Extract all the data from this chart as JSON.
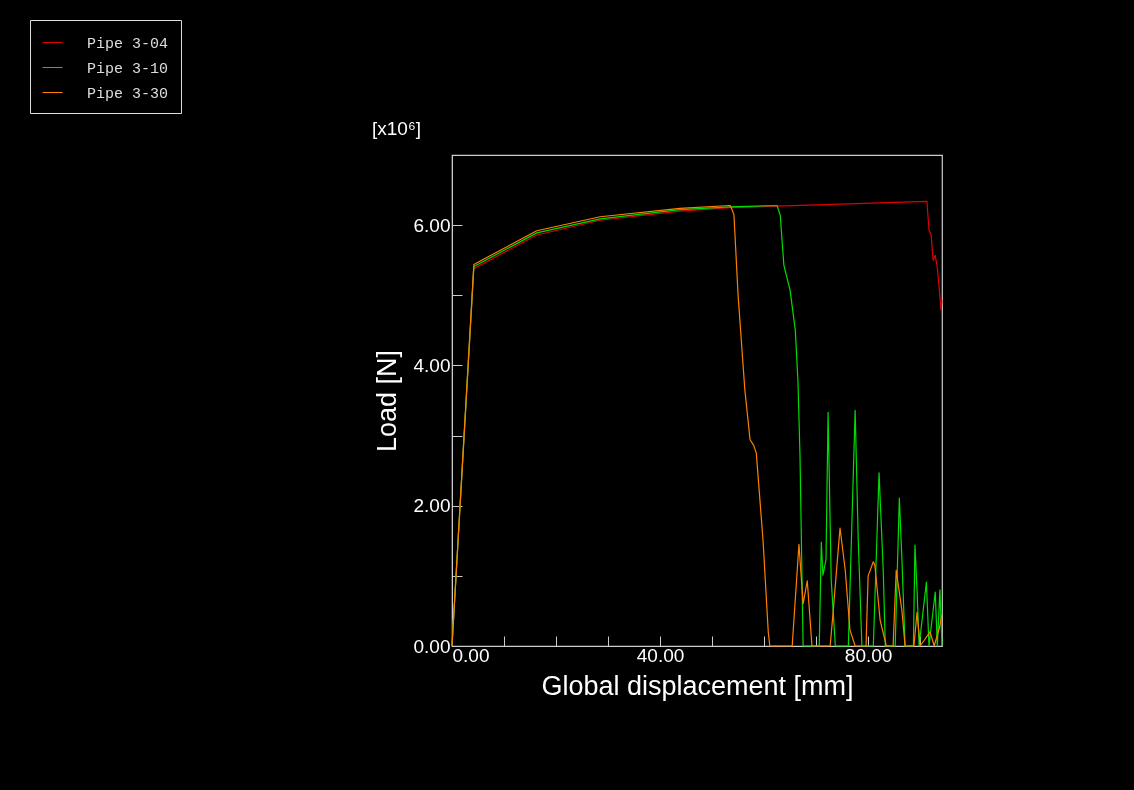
{
  "chart_data": {
    "type": "line",
    "xlabel": "Global displacement [mm]",
    "ylabel": "Load [N]",
    "annotations": [
      "[x10⁶]"
    ],
    "xlim": [
      0,
      94.2
    ],
    "ylim": [
      0,
      7
    ],
    "xticks": [
      {
        "value": 0,
        "label": "0.00"
      },
      {
        "value": 10,
        "label": null
      },
      {
        "value": 20,
        "label": null
      },
      {
        "value": 30,
        "label": null
      },
      {
        "value": 40,
        "label": "40.00"
      },
      {
        "value": 50,
        "label": null
      },
      {
        "value": 60,
        "label": null
      },
      {
        "value": 70,
        "label": null
      },
      {
        "value": 80,
        "label": "80.00"
      },
      {
        "value": 90,
        "label": null
      }
    ],
    "yticks": [
      {
        "value": 0,
        "label": "0.00"
      },
      {
        "value": 1,
        "label": null
      },
      {
        "value": 2,
        "label": "2.00"
      },
      {
        "value": 3,
        "label": null
      },
      {
        "value": 4,
        "label": "4.00"
      },
      {
        "value": 5,
        "label": null
      },
      {
        "value": 6,
        "label": "6.00"
      },
      {
        "value": 7,
        "label": null
      }
    ],
    "grid": false,
    "legend": "top left",
    "line_style": "solid",
    "marker": "none",
    "series": [
      {
        "name": "Pipe 3-04",
        "color": "#e00000",
        "x": [
          0,
          4.2,
          16.3,
          28.5,
          43.8,
          53.5,
          62.5,
          91.3,
          91.7,
          92.1,
          92.5,
          92.9,
          93.3,
          93.7,
          94.0,
          94.2
        ],
        "values": [
          0,
          5.38,
          5.86,
          6.07,
          6.2,
          6.25,
          6.27,
          6.34,
          5.93,
          5.86,
          5.5,
          5.57,
          5.39,
          5.07,
          4.79,
          4.93
        ]
      },
      {
        "name": "Pipe 3-10",
        "color": "#00dd00",
        "x": [
          0,
          4.2,
          16.3,
          28.5,
          43.8,
          53.5,
          62.5,
          63.1,
          63.8,
          65.0,
          66.0,
          66.5,
          66.9,
          67.5,
          70.6,
          71.0,
          71.3,
          71.9,
          72.3,
          72.9,
          73.7,
          76.2,
          77.5,
          78.1,
          78.8,
          81.0,
          82.1,
          82.9,
          83.3,
          85.2,
          86.0,
          86.5,
          87.1,
          88.7,
          89.0,
          89.4,
          89.8,
          91.2,
          91.7,
          92.9,
          93.3,
          93.8,
          94.2
        ],
        "values": [
          0,
          5.41,
          5.89,
          6.09,
          6.22,
          6.26,
          6.28,
          6.14,
          5.43,
          5.07,
          4.5,
          3.79,
          2.72,
          0,
          0,
          1.48,
          1.01,
          1.23,
          3.33,
          0.94,
          0,
          0,
          3.36,
          1.51,
          0,
          0,
          2.47,
          1.08,
          0,
          0,
          2.11,
          1.23,
          0,
          0,
          1.44,
          0.8,
          0,
          0.91,
          0,
          0.77,
          0,
          0.8,
          0
        ]
      },
      {
        "name": "Pipe 3-30",
        "color": "#ff8000",
        "x": [
          0,
          4.2,
          16.3,
          28.5,
          43.8,
          53.5,
          54.2,
          55.0,
          56.3,
          57.3,
          58.0,
          58.5,
          59.8,
          60.8,
          61.1,
          65.4,
          66.7,
          67.5,
          68.3,
          69.2,
          72.7,
          73.3,
          74.4,
          74.6,
          75.6,
          76.5,
          77.5,
          79.6,
          80.0,
          81.0,
          81.3,
          82.3,
          83.5,
          84.8,
          85.4,
          86.5,
          87.1,
          88.8,
          89.4,
          90.0,
          91.9,
          92.7,
          93.7,
          94.2
        ],
        "values": [
          0,
          5.44,
          5.92,
          6.12,
          6.24,
          6.28,
          6.15,
          5.0,
          3.65,
          2.94,
          2.86,
          2.75,
          1.5,
          0.2,
          0,
          0,
          1.45,
          0.6,
          0.93,
          0,
          0,
          0.51,
          1.51,
          1.68,
          1.08,
          0.23,
          0,
          0,
          1.0,
          1.2,
          1.15,
          0.37,
          0,
          0,
          1.08,
          0.5,
          0,
          0,
          0.48,
          0,
          0.2,
          0,
          0.26,
          0.45
        ]
      }
    ]
  }
}
